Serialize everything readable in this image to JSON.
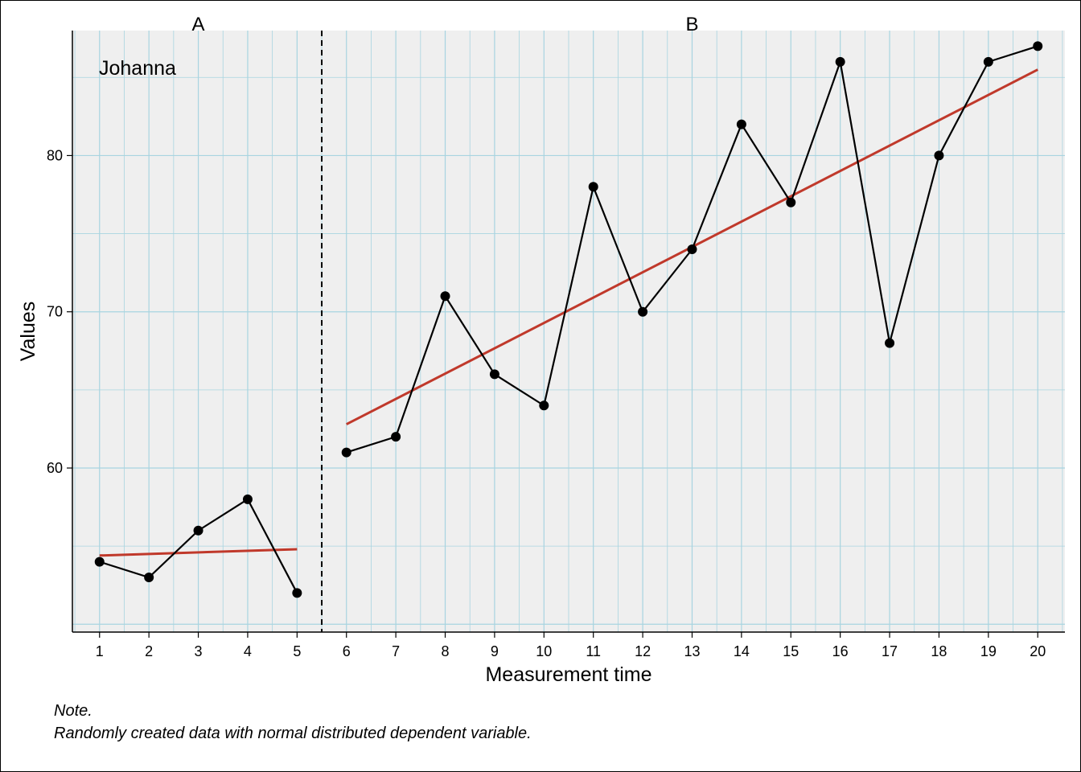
{
  "chart_data": {
    "type": "line",
    "title": "",
    "xlabel": "Measurement time",
    "ylabel": "Values",
    "case_name": "Johanna",
    "xlim": [
      0.45,
      20.55
    ],
    "ylim": [
      49.5,
      88.0
    ],
    "x_ticks": [
      1,
      2,
      3,
      4,
      5,
      6,
      7,
      8,
      9,
      10,
      11,
      12,
      13,
      14,
      15,
      16,
      17,
      18,
      19,
      20
    ],
    "y_ticks": [
      60,
      70,
      80
    ],
    "grid": "minor and major, light blue",
    "phases": [
      {
        "label": "A",
        "x_start": 1,
        "x_end": 5
      },
      {
        "label": "B",
        "x_start": 6,
        "x_end": 20
      }
    ],
    "phase_boundary_x": 5.5,
    "series": [
      {
        "values_x": [
          1,
          2,
          3,
          4,
          5
        ],
        "values_y": [
          54,
          53,
          56,
          58,
          52
        ]
      },
      {
        "values_x": [
          6,
          7,
          8,
          9,
          10,
          11,
          12,
          13,
          14,
          15,
          16,
          17,
          18,
          19,
          20
        ],
        "values_y": [
          61,
          62,
          71,
          66,
          64,
          78,
          70,
          74,
          82,
          77,
          86,
          68,
          80,
          86,
          87
        ]
      }
    ],
    "trend_lines": [
      {
        "x": [
          1,
          5
        ],
        "y": [
          54.4,
          54.8
        ],
        "color": "#c0392b"
      },
      {
        "x": [
          6,
          20
        ],
        "y": [
          62.8,
          85.5
        ],
        "color": "#c0392b"
      }
    ],
    "colors": {
      "data_line": "#000000",
      "trend": "#c0392b",
      "grid": "#a8d4e0",
      "panel_bg": "#efefef"
    }
  },
  "note": {
    "heading": "Note.",
    "text": "Randomly created data with normal distributed dependent variable."
  }
}
